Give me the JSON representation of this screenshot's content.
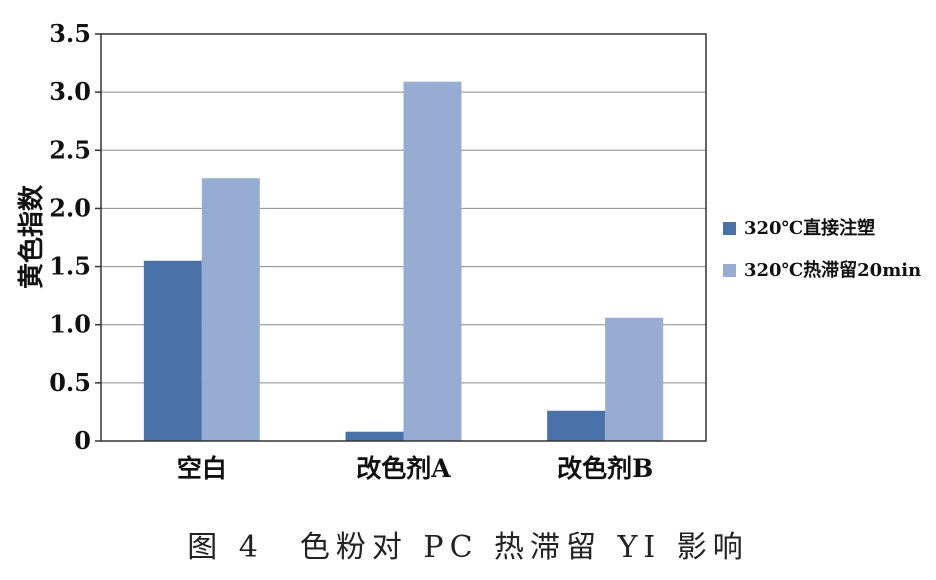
{
  "chart_data": {
    "type": "bar",
    "title": "",
    "xlabel": "",
    "ylabel": "黄色指数",
    "ylim": [
      0,
      3.5
    ],
    "yticks": [
      "0",
      "0.5",
      "1.0",
      "1.5",
      "2.0",
      "2.5",
      "3.0",
      "3.5"
    ],
    "grid": true,
    "legend_position": "right",
    "categories": [
      "空白",
      "改色剂A",
      "改色剂B"
    ],
    "series": [
      {
        "name": "320℃直接注塑",
        "color": "#4a72a8",
        "values": [
          1.55,
          0.08,
          0.26
        ]
      },
      {
        "name": "320℃热滞留20min",
        "color": "#97acd3",
        "values": [
          2.26,
          3.09,
          1.06
        ]
      }
    ]
  },
  "caption": "图 4　色粉对 PC 热滞留 YI 影响"
}
